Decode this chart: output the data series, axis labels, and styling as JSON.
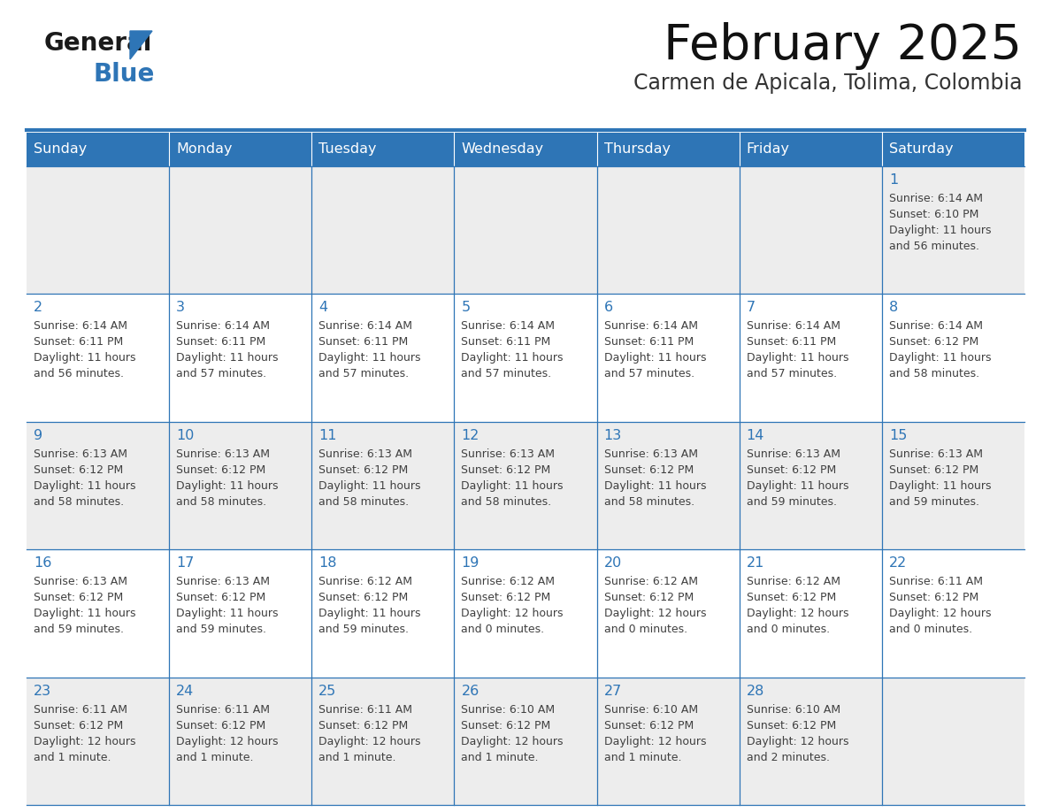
{
  "title": "February 2025",
  "subtitle": "Carmen de Apicala, Tolima, Colombia",
  "header_color": "#2E75B6",
  "header_text_color": "#FFFFFF",
  "day_names": [
    "Sunday",
    "Monday",
    "Tuesday",
    "Wednesday",
    "Thursday",
    "Friday",
    "Saturday"
  ],
  "bg_color": "#FFFFFF",
  "cell_bg_even": "#EDEDED",
  "cell_bg_odd": "#FFFFFF",
  "border_color": "#2E75B6",
  "day_num_color": "#2E75B6",
  "text_color": "#404040",
  "logo_general_color": "#1A1A1A",
  "logo_blue_color": "#2E75B6",
  "logo_triangle_color": "#2E75B6",
  "calendar": [
    [
      null,
      null,
      null,
      null,
      null,
      null,
      {
        "day": 1,
        "rise": "6:14 AM",
        "set": "6:10 PM",
        "light": "11 hours and 56 minutes."
      }
    ],
    [
      {
        "day": 2,
        "rise": "6:14 AM",
        "set": "6:11 PM",
        "light": "11 hours and 56 minutes."
      },
      {
        "day": 3,
        "rise": "6:14 AM",
        "set": "6:11 PM",
        "light": "11 hours and 57 minutes."
      },
      {
        "day": 4,
        "rise": "6:14 AM",
        "set": "6:11 PM",
        "light": "11 hours and 57 minutes."
      },
      {
        "day": 5,
        "rise": "6:14 AM",
        "set": "6:11 PM",
        "light": "11 hours and 57 minutes."
      },
      {
        "day": 6,
        "rise": "6:14 AM",
        "set": "6:11 PM",
        "light": "11 hours and 57 minutes."
      },
      {
        "day": 7,
        "rise": "6:14 AM",
        "set": "6:11 PM",
        "light": "11 hours and 57 minutes."
      },
      {
        "day": 8,
        "rise": "6:14 AM",
        "set": "6:12 PM",
        "light": "11 hours and 58 minutes."
      }
    ],
    [
      {
        "day": 9,
        "rise": "6:13 AM",
        "set": "6:12 PM",
        "light": "11 hours and 58 minutes."
      },
      {
        "day": 10,
        "rise": "6:13 AM",
        "set": "6:12 PM",
        "light": "11 hours and 58 minutes."
      },
      {
        "day": 11,
        "rise": "6:13 AM",
        "set": "6:12 PM",
        "light": "11 hours and 58 minutes."
      },
      {
        "day": 12,
        "rise": "6:13 AM",
        "set": "6:12 PM",
        "light": "11 hours and 58 minutes."
      },
      {
        "day": 13,
        "rise": "6:13 AM",
        "set": "6:12 PM",
        "light": "11 hours and 58 minutes."
      },
      {
        "day": 14,
        "rise": "6:13 AM",
        "set": "6:12 PM",
        "light": "11 hours and 59 minutes."
      },
      {
        "day": 15,
        "rise": "6:13 AM",
        "set": "6:12 PM",
        "light": "11 hours and 59 minutes."
      }
    ],
    [
      {
        "day": 16,
        "rise": "6:13 AM",
        "set": "6:12 PM",
        "light": "11 hours and 59 minutes."
      },
      {
        "day": 17,
        "rise": "6:13 AM",
        "set": "6:12 PM",
        "light": "11 hours and 59 minutes."
      },
      {
        "day": 18,
        "rise": "6:12 AM",
        "set": "6:12 PM",
        "light": "11 hours and 59 minutes."
      },
      {
        "day": 19,
        "rise": "6:12 AM",
        "set": "6:12 PM",
        "light": "12 hours and 0 minutes."
      },
      {
        "day": 20,
        "rise": "6:12 AM",
        "set": "6:12 PM",
        "light": "12 hours and 0 minutes."
      },
      {
        "day": 21,
        "rise": "6:12 AM",
        "set": "6:12 PM",
        "light": "12 hours and 0 minutes."
      },
      {
        "day": 22,
        "rise": "6:11 AM",
        "set": "6:12 PM",
        "light": "12 hours and 0 minutes."
      }
    ],
    [
      {
        "day": 23,
        "rise": "6:11 AM",
        "set": "6:12 PM",
        "light": "12 hours and 1 minute."
      },
      {
        "day": 24,
        "rise": "6:11 AM",
        "set": "6:12 PM",
        "light": "12 hours and 1 minute."
      },
      {
        "day": 25,
        "rise": "6:11 AM",
        "set": "6:12 PM",
        "light": "12 hours and 1 minute."
      },
      {
        "day": 26,
        "rise": "6:10 AM",
        "set": "6:12 PM",
        "light": "12 hours and 1 minute."
      },
      {
        "day": 27,
        "rise": "6:10 AM",
        "set": "6:12 PM",
        "light": "12 hours and 1 minute."
      },
      {
        "day": 28,
        "rise": "6:10 AM",
        "set": "6:12 PM",
        "light": "12 hours and 2 minutes."
      },
      null
    ]
  ]
}
